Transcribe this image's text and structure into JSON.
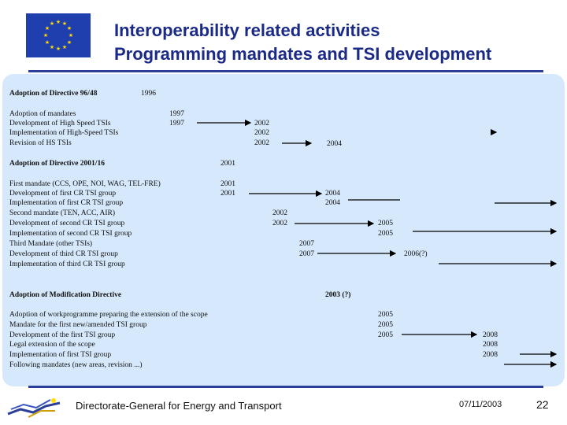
{
  "header": {
    "title_line1": "Interoperability related activities",
    "title_line2": "Programming mandates and TSI development",
    "flag_icon": "eu-flag-icon"
  },
  "timeline": {
    "items": [
      {
        "label": "Adoption of Directive 96/48",
        "heading": true,
        "year": "1996"
      },
      {
        "label": "Adoption of mandates",
        "year": "1997"
      },
      {
        "label": "Development of High Speed TSIs",
        "year": "1997",
        "end": "2002"
      },
      {
        "label": "Implementation of High-Speed TSIs",
        "year": "2002"
      },
      {
        "label": "Revision of HS TSIs",
        "year": "2002",
        "end": "2004"
      },
      {
        "label": "Adoption of Directive 2001/16",
        "heading": true,
        "year": "2001"
      },
      {
        "label": "First mandate (CCS, OPE, NOI, WAG, TEL-FRE)",
        "year": "2001"
      },
      {
        "label": "Development of first CR TSI group",
        "year": "2001",
        "end": "2004"
      },
      {
        "label": "Implementation of first CR TSI group",
        "year": "2004"
      },
      {
        "label": "Second mandate (TEN, ACC, AIR)",
        "year": "2002"
      },
      {
        "label": "Development of second CR TSI group",
        "year": "2002",
        "end": "2005"
      },
      {
        "label": "Implementation of second CR TSI group",
        "year": "2005"
      },
      {
        "label": "Third Mandate (other TSIs)",
        "year": "2007"
      },
      {
        "label": "Development of third CR TSI group",
        "year": "2007",
        "end": "2006(?)"
      },
      {
        "label": "Implementation of third CR TSI group"
      },
      {
        "label": "Adoption of Modification Directive",
        "heading": true,
        "year": "2003 (?)"
      },
      {
        "label": "Adoption of workprogramme preparing the extension of the scope",
        "year": "2005"
      },
      {
        "label": "Mandate for the first new/amended TSI group",
        "year": "2005"
      },
      {
        "label": "Development of the first TSI group",
        "year": "2005",
        "end": "2008"
      },
      {
        "label": "Legal extension of the scope",
        "year": "2008"
      },
      {
        "label": "Implementation of first TSI group",
        "year": "2008"
      },
      {
        "label": "Following mandates (new areas, revision ...)"
      }
    ]
  },
  "footer": {
    "organization": "Directorate-General for Energy and Transport",
    "date": "07/11/2003",
    "page": "22",
    "logo_icon": "dg-tren-logo-icon"
  },
  "colors": {
    "title": "#1a2a86",
    "rule": "#2a3f98",
    "panel": "#d6e8fb",
    "flag": "#1f3fae",
    "stars": "#ffdd00"
  }
}
